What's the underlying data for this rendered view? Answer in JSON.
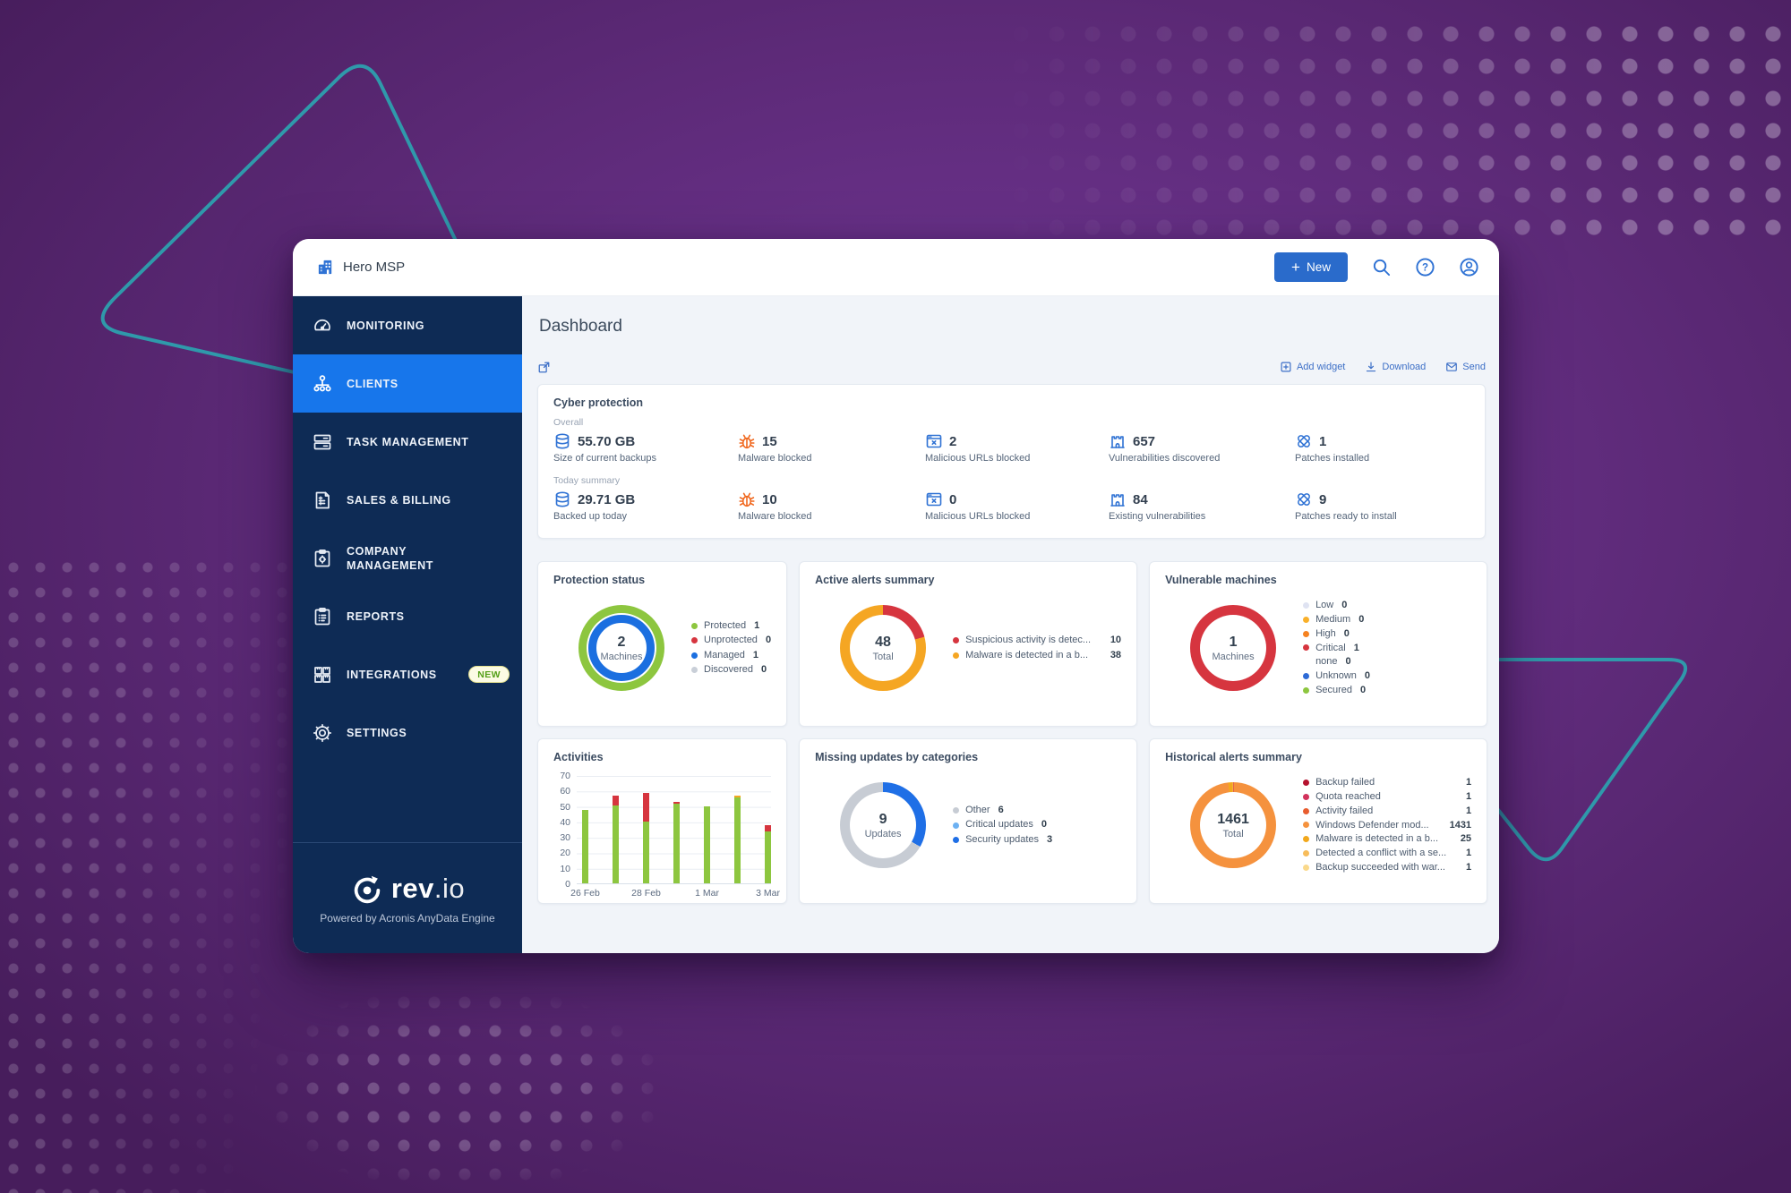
{
  "topbar": {
    "brand": "Hero MSP",
    "new_label": "New"
  },
  "sidebar": {
    "items": [
      {
        "label": "MONITORING"
      },
      {
        "label": "CLIENTS",
        "active": true
      },
      {
        "label": "TASK MANAGEMENT"
      },
      {
        "label": "SALES & BILLING"
      },
      {
        "label": "COMPANY MANAGEMENT"
      },
      {
        "label": "REPORTS"
      },
      {
        "label": "INTEGRATIONS",
        "badge": "NEW"
      },
      {
        "label": "SETTINGS"
      }
    ],
    "logo_text": "rev",
    "logo_suffix": ".io",
    "tagline": "Powered by Acronis AnyData Engine"
  },
  "page": {
    "title": "Dashboard",
    "toolbar": {
      "add_widget": "Add widget",
      "download": "Download",
      "send": "Send"
    }
  },
  "cyber_protection": {
    "title": "Cyber protection",
    "overall_label": "Overall",
    "today_label": "Today summary",
    "overall": [
      {
        "value": "55.70 GB",
        "label": "Size of current backups",
        "icon": "backup-storage"
      },
      {
        "value": "15",
        "label": "Malware blocked",
        "icon": "malware-bug"
      },
      {
        "value": "2",
        "label": "Malicious URLs blocked",
        "icon": "malicious-url"
      },
      {
        "value": "657",
        "label": "Vulnerabilities discovered",
        "icon": "vulnerability"
      },
      {
        "value": "1",
        "label": "Patches installed",
        "icon": "patch"
      }
    ],
    "today": [
      {
        "value": "29.71 GB",
        "label": "Backed up today",
        "icon": "backup-storage"
      },
      {
        "value": "10",
        "label": "Malware blocked",
        "icon": "malware-bug"
      },
      {
        "value": "0",
        "label": "Malicious URLs blocked",
        "icon": "malicious-url"
      },
      {
        "value": "84",
        "label": "Existing vulnerabilities",
        "icon": "vulnerability"
      },
      {
        "value": "9",
        "label": "Patches ready to install",
        "icon": "patch"
      }
    ]
  },
  "chart_data": [
    {
      "type": "pie",
      "style": "double_ring",
      "title": "Protection status",
      "center_value": "2",
      "center_label": "Machines",
      "rings": [
        {
          "name": "Protected",
          "color": "#8dc63f"
        },
        {
          "name": "Managed",
          "color": "#1b6fe0"
        }
      ],
      "legend": [
        {
          "label": "Protected",
          "value": 1,
          "color": "#8dc63f"
        },
        {
          "label": "Unprotected",
          "value": 0,
          "color": "#d6353f"
        },
        {
          "label": "Managed",
          "value": 1,
          "color": "#1b6fe0"
        },
        {
          "label": "Discovered",
          "value": 0,
          "color": "#c9cfd8"
        }
      ]
    },
    {
      "type": "pie",
      "title": "Active alerts summary",
      "center_value": "48",
      "center_label": "Total",
      "segments": [
        {
          "label": "Suspicious activity is detec...",
          "value": 10,
          "color": "#d6353f"
        },
        {
          "label": "Malware is detected in a b...",
          "value": 38,
          "color": "#f5a623"
        }
      ]
    },
    {
      "type": "pie",
      "title": "Vulnerable machines",
      "center_value": "1",
      "center_label": "Machines",
      "segments": [
        {
          "label": "Critical",
          "value": 1,
          "color": "#d6353f"
        }
      ],
      "legend": [
        {
          "label": "Low",
          "value": 0,
          "color": "#dfe3f2"
        },
        {
          "label": "Medium",
          "value": 0,
          "color": "#f9b02a"
        },
        {
          "label": "High",
          "value": 0,
          "color": "#f58220"
        },
        {
          "label": "Critical",
          "value": 1,
          "color": "#d6353f"
        },
        {
          "label": "none",
          "value": 0,
          "color": null
        },
        {
          "label": "Unknown",
          "value": 0,
          "color": "#2e6bd6"
        },
        {
          "label": "Secured",
          "value": 0,
          "color": "#8dc63f"
        }
      ]
    },
    {
      "type": "bar",
      "title": "Activities",
      "ylim": [
        0,
        70
      ],
      "yticks": [
        0,
        10,
        20,
        30,
        40,
        50,
        60,
        70
      ],
      "x_ticks_shown": [
        "26 Feb",
        "28 Feb",
        "1 Mar",
        "3 Mar"
      ],
      "bars": [
        {
          "tick": "26 Feb",
          "segments": [
            {
              "value": 48,
              "color": "#8dc63f"
            }
          ]
        },
        {
          "tick": "",
          "segments": [
            {
              "value": 51,
              "color": "#8dc63f"
            },
            {
              "value": 6,
              "color": "#d6353f"
            }
          ]
        },
        {
          "tick": "28 Feb",
          "segments": [
            {
              "value": 40,
              "color": "#8dc63f"
            },
            {
              "value": 19,
              "color": "#d6353f"
            }
          ]
        },
        {
          "tick": "",
          "segments": [
            {
              "value": 52,
              "color": "#8dc63f"
            },
            {
              "value": 1,
              "color": "#d6353f"
            }
          ]
        },
        {
          "tick": "1 Mar",
          "segments": [
            {
              "value": 50,
              "color": "#8dc63f"
            }
          ]
        },
        {
          "tick": "",
          "segments": [
            {
              "value": 56,
              "color": "#8dc63f"
            },
            {
              "value": 1,
              "color": "#f5a623"
            }
          ]
        },
        {
          "tick": "3 Mar",
          "segments": [
            {
              "value": 34,
              "color": "#8dc63f"
            },
            {
              "value": 4,
              "color": "#d6353f"
            }
          ]
        }
      ]
    },
    {
      "type": "pie",
      "title": "Missing updates by categories",
      "center_value": "9",
      "center_label": "Updates",
      "segments": [
        {
          "label": "Security updates",
          "value": 3,
          "color": "#1f6fe6"
        },
        {
          "label": "Other",
          "value": 6,
          "color": "#c7ccd4"
        }
      ],
      "legend": [
        {
          "label": "Other",
          "value": 6,
          "color": "#c7ccd4"
        },
        {
          "label": "Critical updates",
          "value": 0,
          "color": "#6db1f2"
        },
        {
          "label": "Security updates",
          "value": 3,
          "color": "#1f6fe6"
        }
      ]
    },
    {
      "type": "pie",
      "title": "Historical alerts summary",
      "center_value": "1461",
      "center_label": "Total",
      "segments": [
        {
          "label": "Backup failed",
          "value": 1,
          "color": "#b5122e"
        },
        {
          "label": "Quota reached",
          "value": 1,
          "color": "#d2335c"
        },
        {
          "label": "Activity failed",
          "value": 1,
          "color": "#e85d2f"
        },
        {
          "label": "Windows Defender mod...",
          "value": 1431,
          "color": "#f5923e"
        },
        {
          "label": "Malware is detected in a b...",
          "value": 25,
          "color": "#f2a81d"
        },
        {
          "label": "Detected a conflict with a se...",
          "value": 1,
          "color": "#f7bc5a"
        },
        {
          "label": "Backup succeeded with war...",
          "value": 1,
          "color": "#fad98b"
        }
      ]
    }
  ]
}
